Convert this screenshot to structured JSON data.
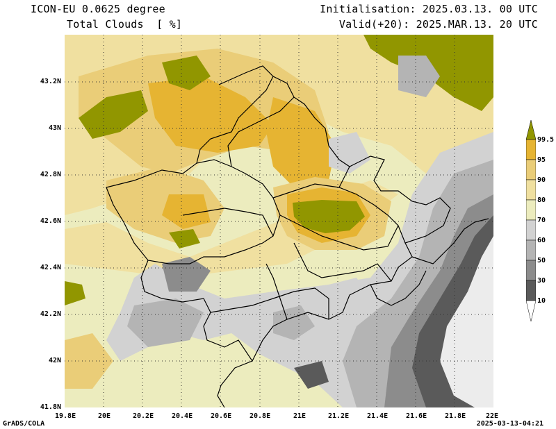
{
  "header": {
    "model": "ICON-EU 0.0625 degree",
    "field": "Total Clouds  [ %]",
    "init": "Initialisation: 2025.03.13. 00 UTC",
    "valid": "Valid(+20): 2025.MAR.13. 20 UTC"
  },
  "axes": {
    "lat_labels": [
      "43.2N",
      "43N",
      "42.8N",
      "42.6N",
      "42.4N",
      "42.2N",
      "42N",
      "41.8N"
    ],
    "lon_labels": [
      "19.8E",
      "20E",
      "20.2E",
      "20.4E",
      "20.6E",
      "20.8E",
      "21E",
      "21.2E",
      "21.4E",
      "21.6E",
      "21.8E",
      "22E"
    ]
  },
  "colorbar": {
    "levels": [
      "10",
      "30",
      "50",
      "60",
      "70",
      "80",
      "90",
      "95",
      "99.5"
    ],
    "colors": [
      "#ffffff",
      "#5a5a5a",
      "#8c8c8c",
      "#b4b4b4",
      "#d2d2d2",
      "#ececbe",
      "#f0e0a0",
      "#eacd78",
      "#e6b432",
      "#919600"
    ]
  },
  "footer": {
    "left": "GrADS/COLA",
    "right": "2025-03-13-04:21"
  }
}
